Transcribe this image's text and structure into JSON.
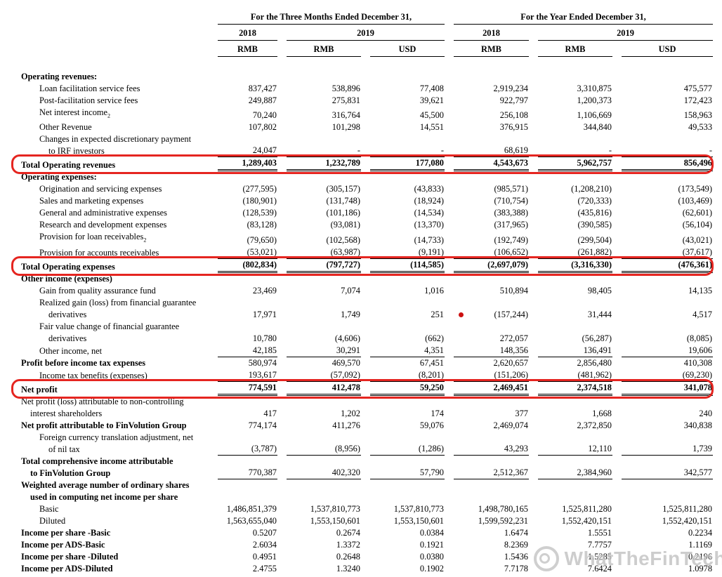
{
  "header": {
    "three_months_group": "For the Three Months Ended December 31,",
    "year_group": "For the Year Ended December 31,",
    "years": [
      "2018",
      "2019",
      "2018",
      "2019"
    ],
    "currencies": [
      "RMB",
      "RMB",
      "USD",
      "RMB",
      "RMB",
      "USD"
    ]
  },
  "rows": [
    {
      "label": "Operating revenues:",
      "indent": 0,
      "bold": true,
      "values": [
        "",
        "",
        "",
        "",
        "",
        ""
      ]
    },
    {
      "label": "Loan facilitation service fees",
      "indent": 1,
      "values": [
        "837,427",
        "538,896",
        "77,408",
        "2,919,234",
        "3,310,875",
        "475,577"
      ]
    },
    {
      "label": "Post-facilitation service fees",
      "indent": 1,
      "values": [
        "249,887",
        "275,831",
        "39,621",
        "922,797",
        "1,200,373",
        "172,423"
      ]
    },
    {
      "label": "Net interest income₂",
      "indent": 1,
      "values": [
        "70,240",
        "316,764",
        "45,500",
        "256,108",
        "1,106,669",
        "158,963"
      ]
    },
    {
      "label": "Other Revenue",
      "indent": 1,
      "values": [
        "107,802",
        "101,298",
        "14,551",
        "376,915",
        "344,840",
        "49,533"
      ]
    },
    {
      "label": "Changes in expected discretionary payment\nto IRF investors",
      "indent": 1,
      "rule": "single",
      "values": [
        "24,047",
        "-",
        "-",
        "68,619",
        "-",
        "-"
      ]
    },
    {
      "label": "Total Operating revenues",
      "indent": 0,
      "bold": true,
      "bold_values": true,
      "rule": "double",
      "highlight": true,
      "values": [
        "1,289,403",
        "1,232,789",
        "177,080",
        "4,543,673",
        "5,962,757",
        "856,496"
      ]
    },
    {
      "label": "Operating expenses:",
      "indent": 0,
      "bold": true,
      "values": [
        "",
        "",
        "",
        "",
        "",
        ""
      ]
    },
    {
      "label": "Origination and servicing expenses",
      "indent": 1,
      "values": [
        "(277,595)",
        "(305,157)",
        "(43,833)",
        "(985,571)",
        "(1,208,210)",
        "(173,549)"
      ]
    },
    {
      "label": "Sales and marketing expenses",
      "indent": 1,
      "values": [
        "(180,901)",
        "(131,748)",
        "(18,924)",
        "(710,754)",
        "(720,333)",
        "(103,469)"
      ]
    },
    {
      "label": "General and administrative expenses",
      "indent": 1,
      "values": [
        "(128,539)",
        "(101,186)",
        "(14,534)",
        "(383,388)",
        "(435,816)",
        "(62,601)"
      ]
    },
    {
      "label": "Research and development expenses",
      "indent": 1,
      "values": [
        "(83,128)",
        "(93,081)",
        "(13,370)",
        "(317,965)",
        "(390,585)",
        "(56,104)"
      ]
    },
    {
      "label": "Provision for loan receivables₂",
      "indent": 1,
      "values": [
        "(79,650)",
        "(102,568)",
        "(14,733)",
        "(192,749)",
        "(299,504)",
        "(43,021)"
      ]
    },
    {
      "label": "Provision for accounts receivables",
      "indent": 1,
      "rule": "single",
      "values": [
        "(53,021)",
        "(63,987)",
        "(9,191)",
        "(106,652)",
        "(261,882)",
        "(37,617)"
      ]
    },
    {
      "label": "Total Operating expenses",
      "indent": 0,
      "bold": true,
      "bold_values": true,
      "rule": "double",
      "highlight": true,
      "values": [
        "(802,834)",
        "(797,727)",
        "(114,585)",
        "(2,697,079)",
        "(3,316,330)",
        "(476,361)"
      ]
    },
    {
      "label": "Other income (expenses)",
      "indent": 0,
      "bold": true,
      "values": [
        "",
        "",
        "",
        "",
        "",
        ""
      ]
    },
    {
      "label": "Gain from quality assurance fund",
      "indent": 1,
      "values": [
        "23,469",
        "7,074",
        "1,016",
        "510,894",
        "98,405",
        "14,135"
      ]
    },
    {
      "label": "Realized gain (loss) from financial guarantee\nderivatives",
      "indent": 1,
      "dot": true,
      "values": [
        "17,971",
        "1,749",
        "251",
        "(157,244)",
        "31,444",
        "4,517"
      ]
    },
    {
      "label": "Fair value change of financial guarantee\nderivatives",
      "indent": 1,
      "values": [
        "10,780",
        "(4,606)",
        "(662)",
        "272,057",
        "(56,287)",
        "(8,085)"
      ]
    },
    {
      "label": "Other income, net",
      "indent": 1,
      "rule": "single",
      "values": [
        "42,185",
        "30,291",
        "4,351",
        "148,356",
        "136,491",
        "19,606"
      ]
    },
    {
      "label": "Profit before income tax expenses",
      "indent": 0,
      "bold": true,
      "values": [
        "580,974",
        "469,570",
        "67,451",
        "2,620,657",
        "2,856,480",
        "410,308"
      ]
    },
    {
      "label": "Income tax benefits (expenses)",
      "indent": 1,
      "rule": "single",
      "values": [
        "193,617",
        "(57,092)",
        "(8,201)",
        "(151,206)",
        "(481,962)",
        "(69,230)"
      ]
    },
    {
      "label": "Net profit",
      "indent": 0,
      "bold": true,
      "bold_values": true,
      "rule": "double",
      "highlight": true,
      "values": [
        "774,591",
        "412,478",
        "59,250",
        "2,469,451",
        "2,374,518",
        "341,078"
      ]
    },
    {
      "label": "Net profit (loss) attributable to non-controlling\ninterest shareholders",
      "indent": 0,
      "values": [
        "417",
        "1,202",
        "174",
        "377",
        "1,668",
        "240"
      ]
    },
    {
      "label": "Net profit attributable to FinVolution Group",
      "indent": 0,
      "bold": true,
      "values": [
        "774,174",
        "411,276",
        "59,076",
        "2,469,074",
        "2,372,850",
        "340,838"
      ]
    },
    {
      "label": "Foreign currency translation adjustment, net\nof nil tax",
      "indent": 1,
      "rule": "single",
      "values": [
        "(3,787)",
        "(8,956)",
        "(1,286)",
        "43,293",
        "12,110",
        "1,739"
      ]
    },
    {
      "label": "Total comprehensive income attributable\nto FinVolution Group",
      "indent": 0,
      "bold": true,
      "rule": "single",
      "values": [
        "770,387",
        "402,320",
        "57,790",
        "2,512,367",
        "2,384,960",
        "342,577"
      ]
    },
    {
      "label": "Weighted average number of ordinary shares\nused in computing net income per share",
      "indent": 0,
      "bold": true,
      "values": [
        "",
        "",
        "",
        "",
        "",
        ""
      ]
    },
    {
      "label": "Basic",
      "indent": 1,
      "values": [
        "1,486,851,379",
        "1,537,810,773",
        "1,537,810,773",
        "1,498,780,165",
        "1,525,811,280",
        "1,525,811,280"
      ]
    },
    {
      "label": "Diluted",
      "indent": 1,
      "values": [
        "1,563,655,040",
        "1,553,150,601",
        "1,553,150,601",
        "1,599,592,231",
        "1,552,420,151",
        "1,552,420,151"
      ]
    },
    {
      "label": "Income per share -Basic",
      "indent": 0,
      "bold": true,
      "values": [
        "0.5207",
        "0.2674",
        "0.0384",
        "1.6474",
        "1.5551",
        "0.2234"
      ]
    },
    {
      "label": "Income per ADS-Basic",
      "indent": 0,
      "bold": true,
      "values": [
        "2.6034",
        "1.3372",
        "0.1921",
        "8.2369",
        "7.7757",
        "1.1169"
      ]
    },
    {
      "label": "Income per share -Diluted",
      "indent": 0,
      "bold": true,
      "values": [
        "0.4951",
        "0.2648",
        "0.0380",
        "1.5436",
        "1.5285",
        "0.2196"
      ]
    },
    {
      "label": "Income per ADS-Diluted",
      "indent": 0,
      "bold": true,
      "values": [
        "2.4755",
        "1.3240",
        "0.1902",
        "7.7178",
        "7.6424",
        "1.0978"
      ]
    }
  ],
  "annotations": {
    "highlight_color": "#e52520",
    "dot_color": "#cc1111",
    "highlighted_rows": [
      "Total Operating revenues",
      "Total Operating expenses",
      "Net profit"
    ]
  },
  "watermark": {
    "text": "WhatTheFinTech"
  }
}
